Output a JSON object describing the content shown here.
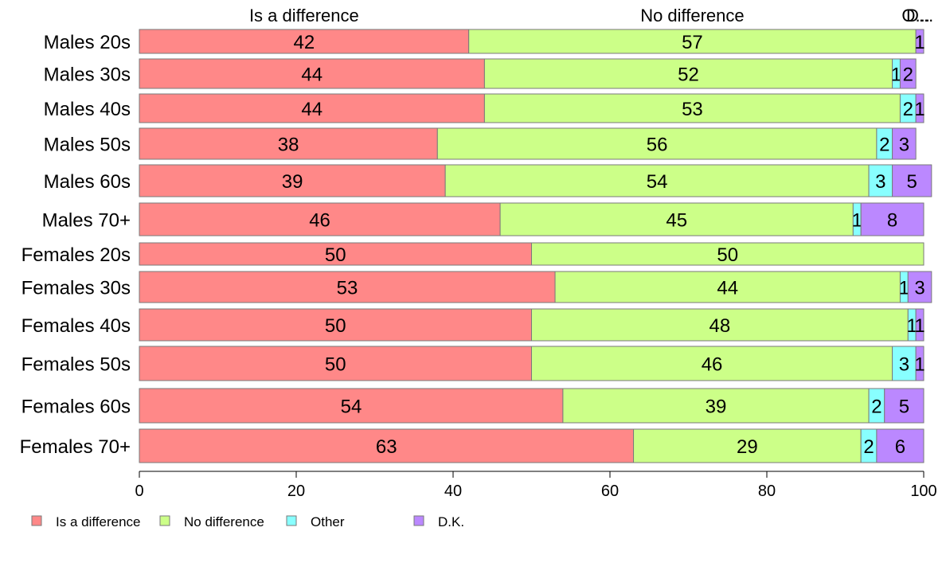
{
  "chart_data": {
    "type": "bar",
    "orientation": "horizontal",
    "stacked": true,
    "categories": [
      "Males 20s",
      "Males 30s",
      "Males 40s",
      "Males 50s",
      "Males 60s",
      "Males 70+",
      "Females 20s",
      "Females 30s",
      "Females 40s",
      "Females 50s",
      "Females 60s",
      "Females 70+"
    ],
    "series": [
      {
        "name": "Is a difference",
        "color": "#ff8888",
        "values": [
          42,
          44,
          44,
          38,
          39,
          46,
          50,
          53,
          50,
          50,
          54,
          63
        ],
        "labels": [
          "42",
          "44",
          "44",
          "38",
          "39",
          "46",
          "50",
          "53",
          "50",
          "50",
          "54",
          "63"
        ]
      },
      {
        "name": "No difference",
        "color": "#ccff88",
        "values": [
          57,
          52,
          53,
          56,
          54,
          45,
          50,
          44,
          48,
          46,
          39,
          29
        ],
        "labels": [
          "57",
          "52",
          "53",
          "56",
          "54",
          "45",
          "50",
          "44",
          "48",
          "46",
          "39",
          "29"
        ]
      },
      {
        "name": "Other",
        "color": "#88ffff",
        "values": [
          0,
          1,
          2,
          2,
          3,
          1,
          0,
          1,
          1,
          3,
          2,
          2
        ],
        "labels": [
          "",
          "1",
          "2",
          "2",
          "3",
          "1",
          "",
          "1",
          "1",
          "3",
          "2",
          "2"
        ]
      },
      {
        "name": "D.K.",
        "color": "#bb88ff",
        "values": [
          1,
          2,
          1,
          3,
          5,
          8,
          0,
          3,
          1,
          1,
          5,
          6
        ],
        "labels": [
          "1",
          "2",
          "1",
          "3",
          "5",
          "8",
          "",
          "3",
          "1",
          "1",
          "5",
          "6"
        ]
      }
    ],
    "top_labels": [
      "Is a difference",
      "No difference",
      "O...",
      "D..."
    ],
    "xlim": [
      0,
      100
    ],
    "xticks": [
      "0",
      "20",
      "40",
      "60",
      "80",
      "100"
    ],
    "legend_position": "bottom-left",
    "grid": false
  }
}
